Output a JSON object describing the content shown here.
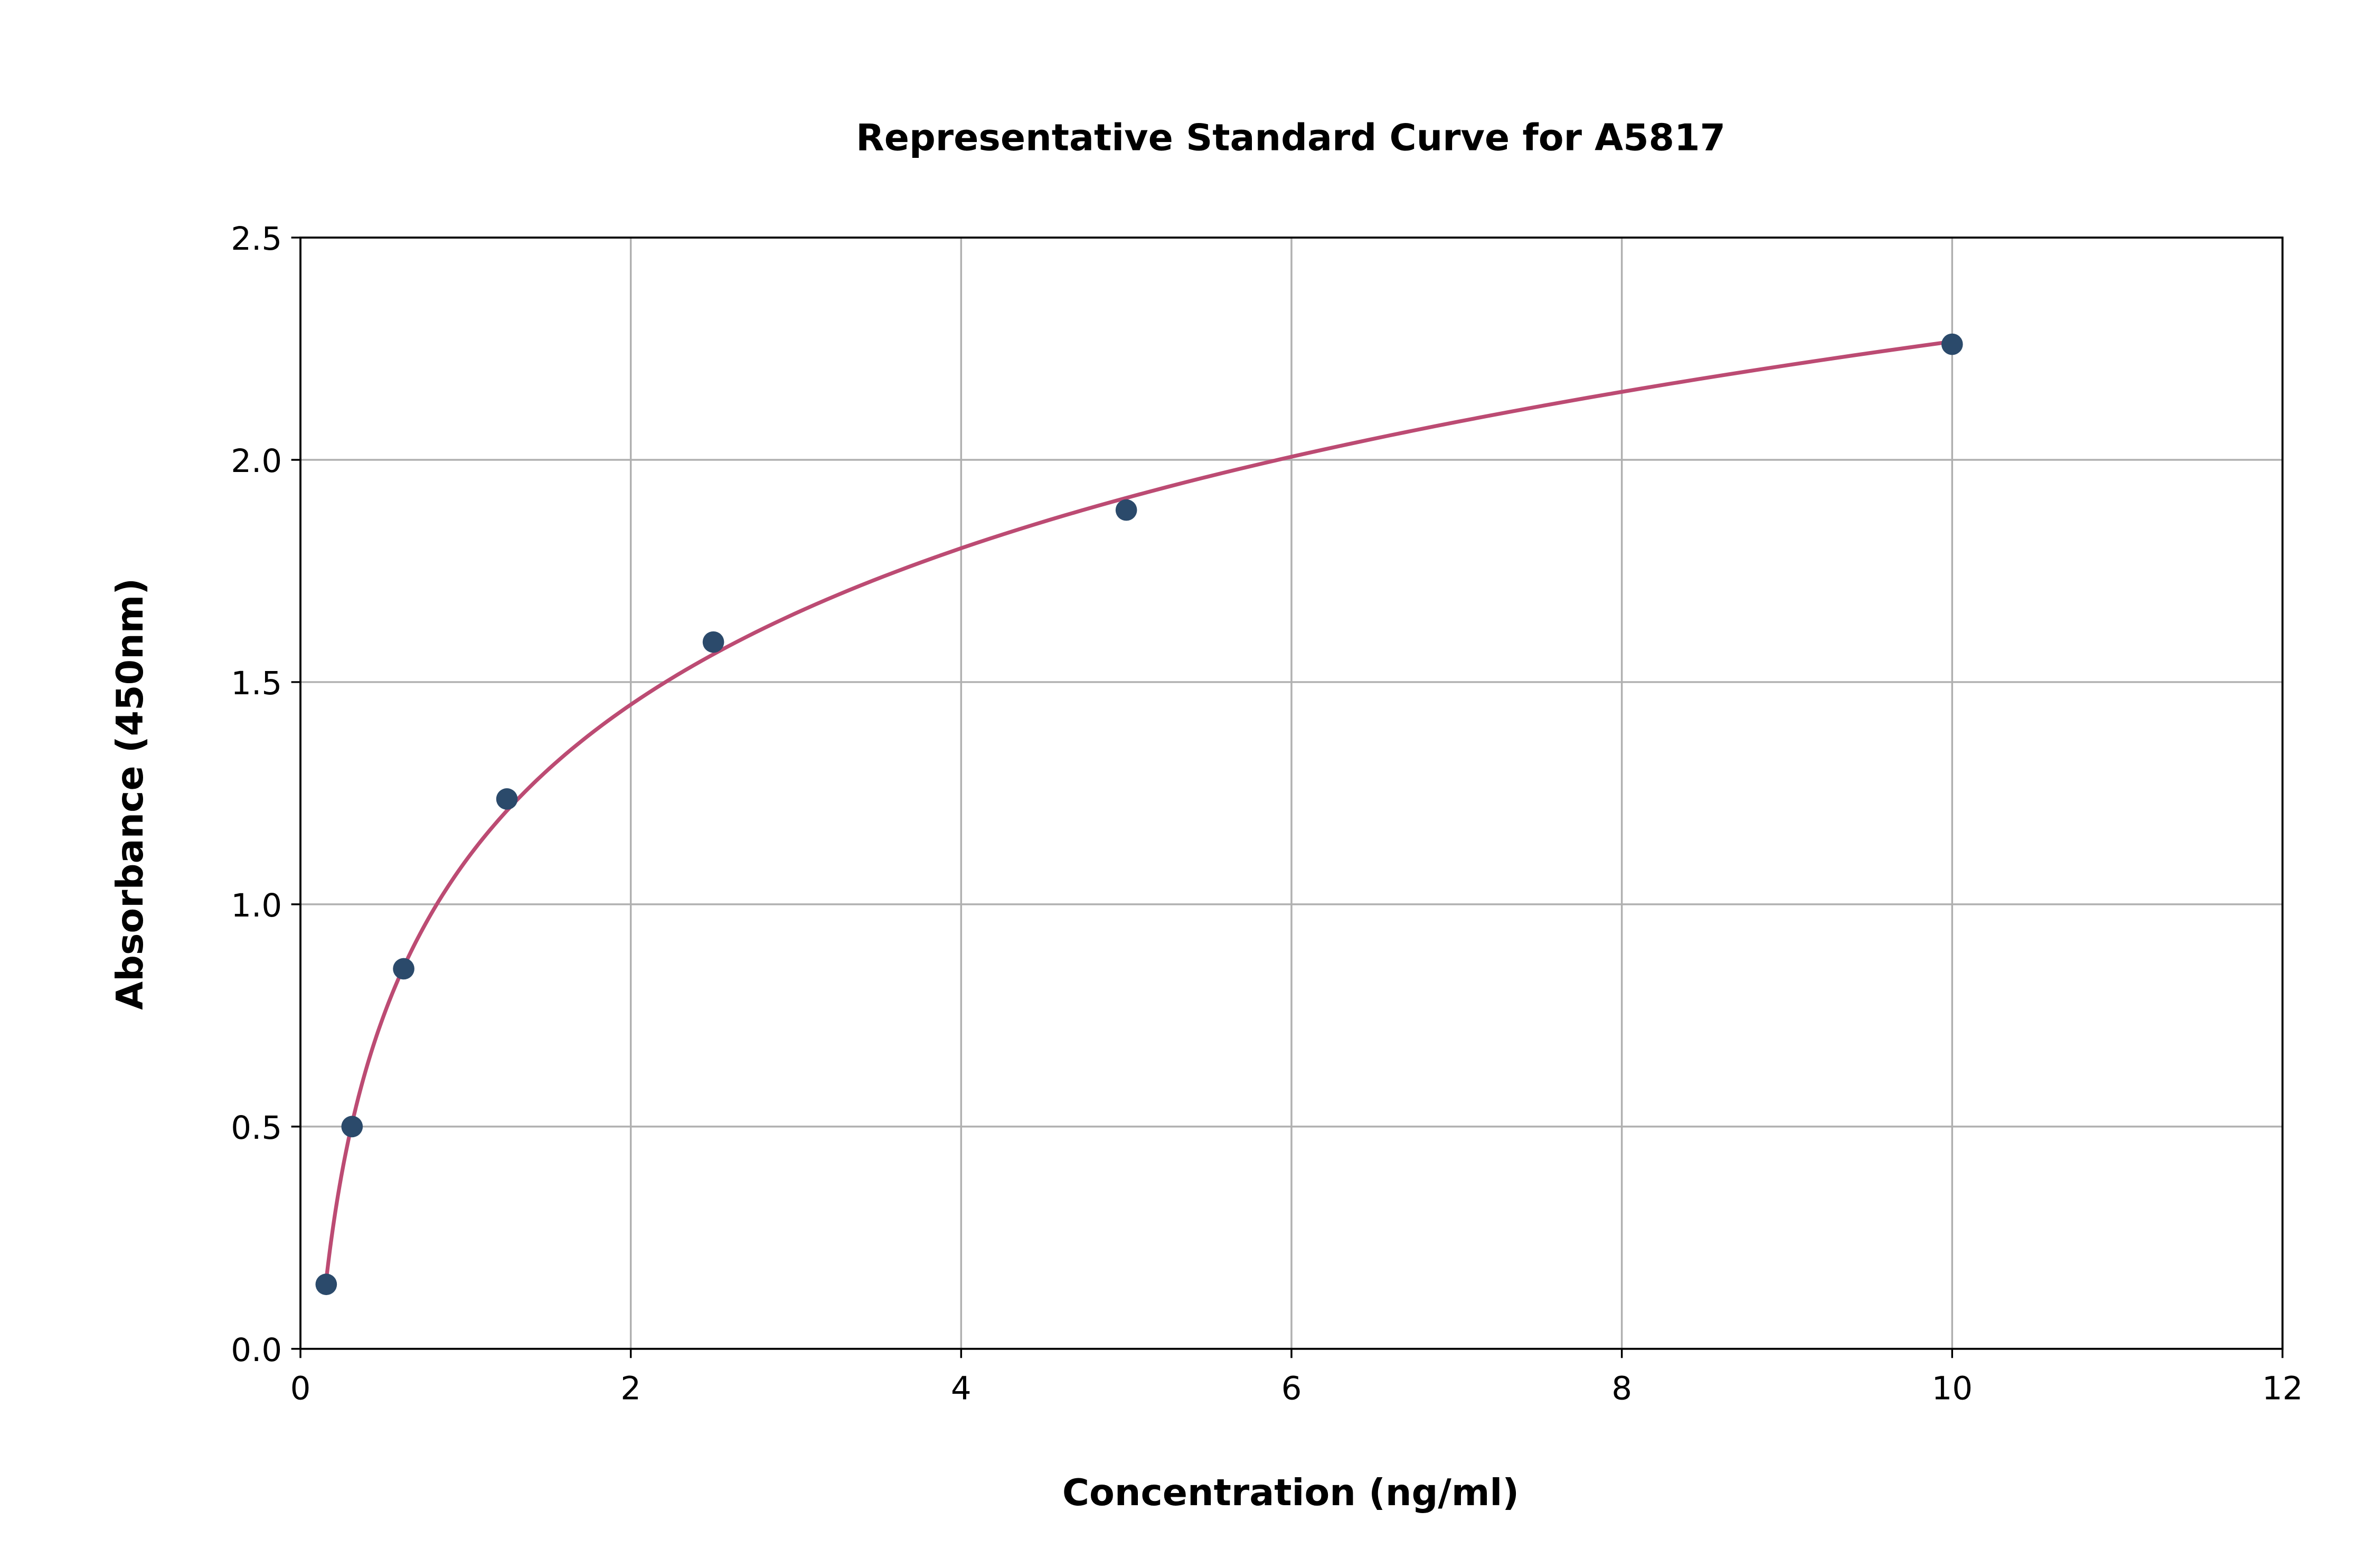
{
  "chart_data": {
    "type": "scatter",
    "title": "Representative Standard Curve for A5817",
    "xlabel": "Concentration (ng/ml)",
    "ylabel": "Absorbance (450nm)",
    "xlim": [
      0,
      12
    ],
    "ylim": [
      0,
      2.5
    ],
    "xticks": [
      "0",
      "2",
      "4",
      "6",
      "8",
      "10",
      "12"
    ],
    "yticks": [
      "0.0",
      "0.5",
      "1.0",
      "1.5",
      "2.0",
      "2.5"
    ],
    "grid": true,
    "points": {
      "x": [
        0.156,
        0.3125,
        0.625,
        1.25,
        2.5,
        5,
        10
      ],
      "y": [
        0.145,
        0.5,
        0.855,
        1.237,
        1.59,
        1.887,
        2.26
      ]
    },
    "fit_curve": {
      "x_range": [
        0.156,
        10
      ]
    },
    "colors": {
      "points": "#2b4a6b",
      "curve": "#bc4b73",
      "grid": "#b0b0b0"
    }
  }
}
